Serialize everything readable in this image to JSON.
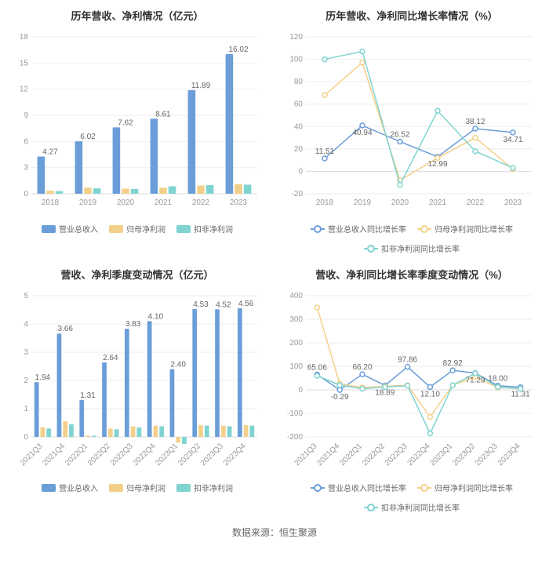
{
  "colors": {
    "blue": "#6b9ed8",
    "yellow": "#f3d08a",
    "teal": "#7fd3d0",
    "grid": "#eeeeee",
    "axis": "#dddddd",
    "text": "#666666",
    "title": "#333333",
    "bg": "#ffffff"
  },
  "chart1": {
    "title": "历年营收、净利情况（亿元）",
    "type": "bar",
    "categories": [
      "2018",
      "2019",
      "2020",
      "2021",
      "2022",
      "2023"
    ],
    "ylim": [
      0,
      18
    ],
    "ystep": 3,
    "series": [
      {
        "key": "rev",
        "name": "营业总收入",
        "color": "#6b9ed8",
        "values": [
          4.27,
          6.02,
          7.62,
          8.61,
          11.89,
          16.02
        ],
        "labels": [
          "4.27",
          "6.02",
          "7.62",
          "8.61",
          "11.89",
          "16.02"
        ]
      },
      {
        "key": "net",
        "name": "归母净利润",
        "color": "#f3d08a",
        "values": [
          0.35,
          0.7,
          0.6,
          0.7,
          0.95,
          1.1
        ]
      },
      {
        "key": "ded",
        "name": "扣非净利润",
        "color": "#7fd3d0",
        "values": [
          0.3,
          0.62,
          0.55,
          0.85,
          1.0,
          1.05
        ]
      }
    ],
    "fontsize_title": 13,
    "fontsize_axis": 10
  },
  "chart2": {
    "title": "历年营收、净利同比增长率情况（%）",
    "type": "line",
    "categories": [
      "2018",
      "2019",
      "2020",
      "2021",
      "2022",
      "2023"
    ],
    "ylim": [
      -20,
      120
    ],
    "ystep": 20,
    "series": [
      {
        "key": "rev",
        "name": "营业总收入同比增长率",
        "color": "#6b9ed8",
        "values": [
          11.51,
          40.94,
          26.52,
          12.99,
          38.12,
          34.71
        ],
        "labels": [
          "11.51",
          "40.94",
          "26.52",
          "12.99",
          "38.12",
          "34.71"
        ]
      },
      {
        "key": "net",
        "name": "归母净利润同比增长率",
        "color": "#f3d08a",
        "values": [
          68,
          97,
          -8,
          12,
          30,
          2
        ]
      },
      {
        "key": "ded",
        "name": "扣非净利润同比增长率",
        "color": "#7fd3d0",
        "values": [
          100,
          107,
          -12,
          54,
          18,
          3
        ]
      }
    ],
    "marker_r": 3,
    "line_w": 1.5
  },
  "chart3": {
    "title": "营收、净利季度变动情况（亿元）",
    "type": "bar",
    "categories": [
      "2021Q3",
      "2021Q4",
      "2022Q1",
      "2022Q2",
      "2022Q3",
      "2022Q4",
      "2023Q1",
      "2023Q2",
      "2023Q3",
      "2023Q4"
    ],
    "ylim": [
      0,
      5
    ],
    "ystep": 1,
    "xrotate": -45,
    "series": [
      {
        "key": "rev",
        "name": "营业总收入",
        "color": "#6b9ed8",
        "values": [
          1.94,
          3.66,
          1.31,
          2.64,
          3.83,
          4.1,
          2.4,
          4.53,
          4.52,
          4.56
        ],
        "labels": [
          "1.94",
          "3.66",
          "1.31",
          "2.64",
          "3.83",
          "4.10",
          "2.40",
          "4.53",
          "4.52",
          "4.56"
        ]
      },
      {
        "key": "net",
        "name": "归母净利润",
        "color": "#f3d08a",
        "values": [
          0.35,
          0.55,
          0.05,
          0.3,
          0.38,
          0.4,
          -0.2,
          0.42,
          0.4,
          0.42
        ]
      },
      {
        "key": "ded",
        "name": "扣非净利润",
        "color": "#7fd3d0",
        "values": [
          0.3,
          0.45,
          0.04,
          0.27,
          0.34,
          0.38,
          -0.25,
          0.4,
          0.38,
          0.4
        ]
      }
    ]
  },
  "chart4": {
    "title": "营收、净利同比增长率季度变动情况（%）",
    "type": "line",
    "categories": [
      "2021Q3",
      "2021Q4",
      "2022Q1",
      "2022Q2",
      "2022Q3",
      "2022Q4",
      "2023Q1",
      "2023Q2",
      "2023Q3",
      "2023Q4"
    ],
    "ylim": [
      -200,
      400
    ],
    "ystep": 100,
    "xrotate": -45,
    "series": [
      {
        "key": "rev",
        "name": "营业总收入同比增长率",
        "color": "#6b9ed8",
        "values": [
          65.06,
          -0.29,
          66.2,
          18.89,
          97.86,
          12.1,
          82.92,
          71.29,
          18.0,
          11.31
        ],
        "labels": [
          "65.06",
          "-0.29",
          "66.20",
          "18.89",
          "97.86",
          "12.10",
          "82.92",
          "71.29",
          "18.00",
          "11.31"
        ]
      },
      {
        "key": "net",
        "name": "归母净利润同比增长率",
        "color": "#f3d08a",
        "values": [
          350,
          25,
          10,
          15,
          20,
          -115,
          20,
          55,
          10,
          5
        ]
      },
      {
        "key": "ded",
        "name": "扣非净利润同比增长率",
        "color": "#7fd3d0",
        "values": [
          60,
          20,
          5,
          12,
          18,
          -185,
          20,
          70,
          12,
          5
        ]
      }
    ],
    "marker_r": 3,
    "line_w": 1.5
  },
  "footer": "数据来源：恒生聚源"
}
